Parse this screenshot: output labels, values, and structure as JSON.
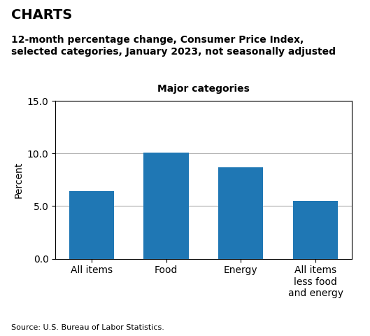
{
  "chart_data": {
    "type": "bar",
    "page_title": "CHARTS",
    "title": "12-month percentage change, Consumer Price Index,\nselected categories, January 2023, not seasonally adjusted",
    "subtitle": "Major categories",
    "ylabel": "Percent",
    "categories": [
      "All items",
      "Food",
      "Energy",
      "All items\nless food\nand energy"
    ],
    "values": [
      6.4,
      10.1,
      8.7,
      5.5
    ],
    "ylim": [
      0,
      15.0
    ],
    "yticks": [
      {
        "value": 0,
        "label": "0.0"
      },
      {
        "value": 5,
        "label": "5.0"
      },
      {
        "value": 10,
        "label": "10.0"
      },
      {
        "value": 15,
        "label": "15.0"
      }
    ],
    "grid": true,
    "source": "Source: U.S. Bureau of Labor Statistics."
  }
}
